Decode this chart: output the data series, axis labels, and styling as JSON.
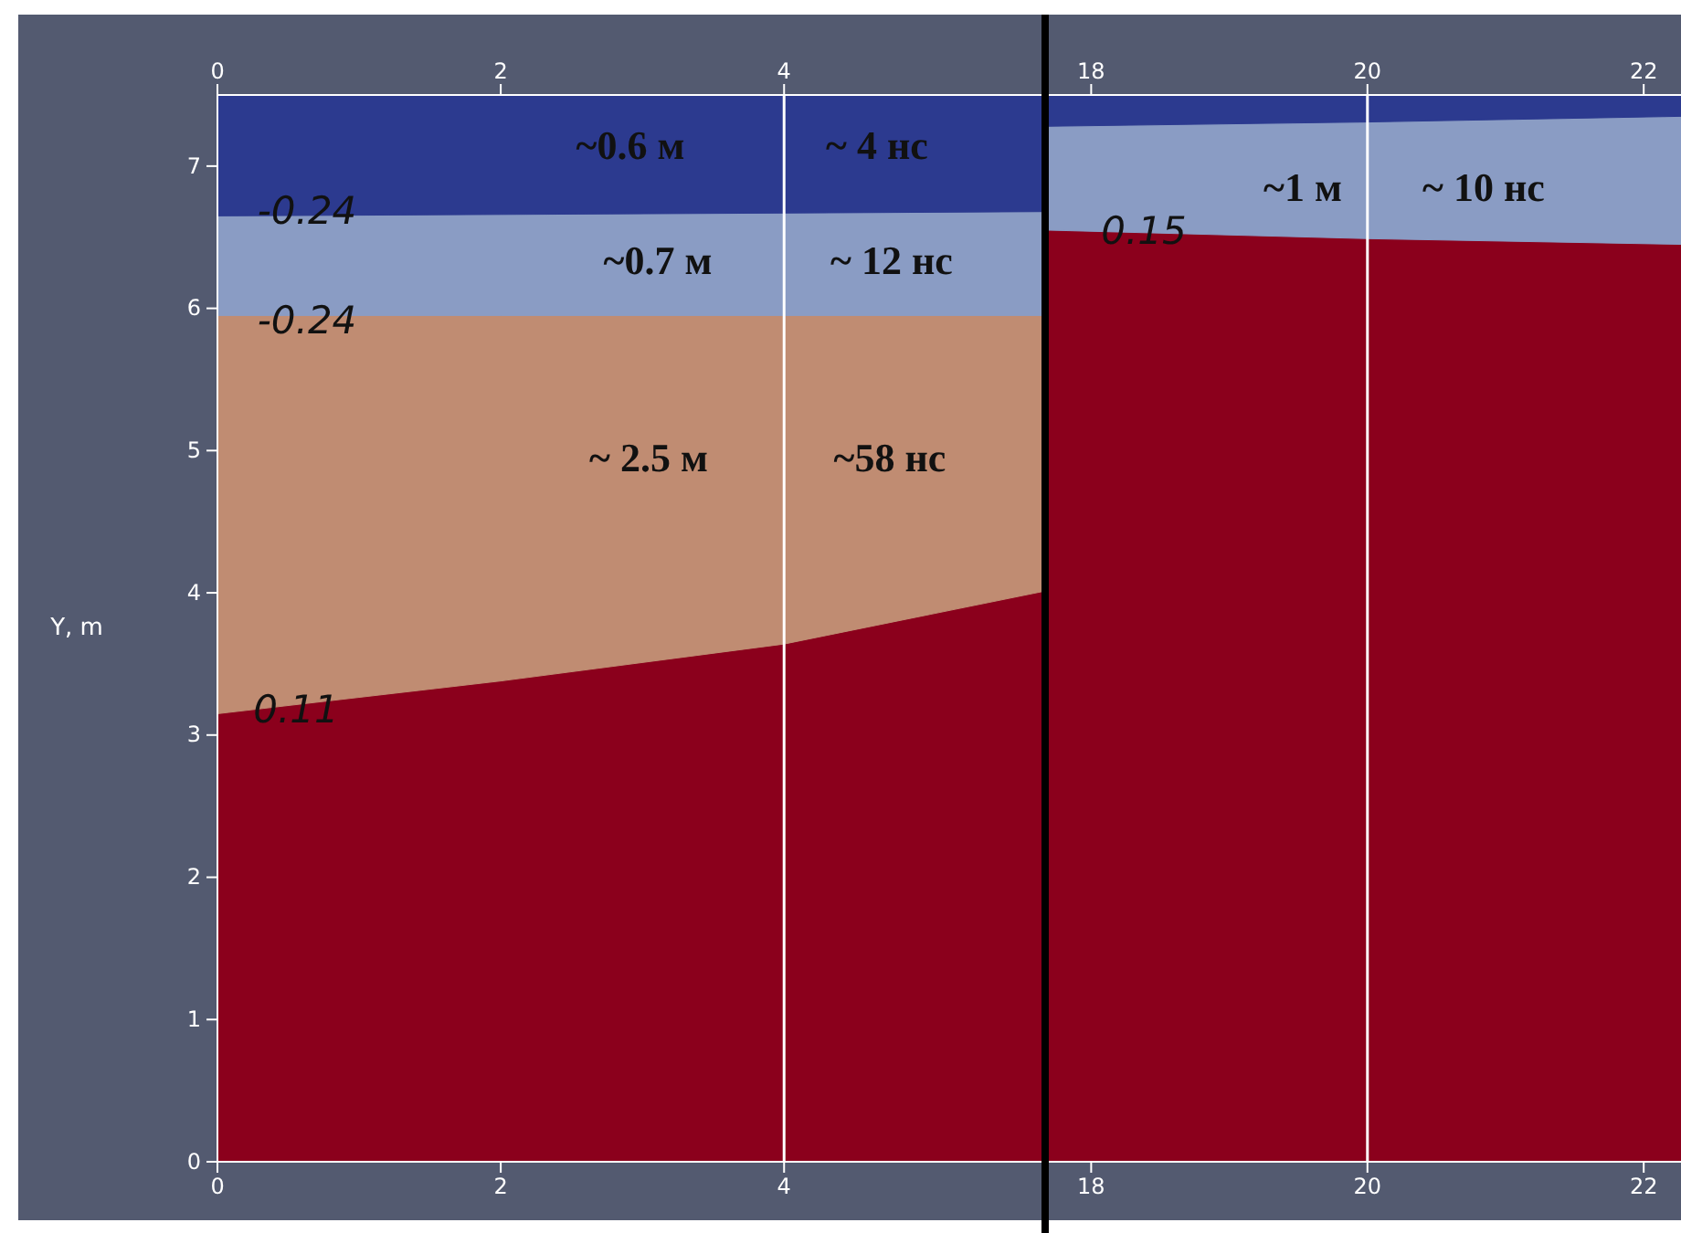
{
  "chart_data": [
    {
      "type": "area",
      "stacked": true,
      "ylabel": "Y, m",
      "x": [
        0,
        2,
        4,
        5.83
      ],
      "series": [
        {
          "color": "#8b001c",
          "values": [
            3.15,
            3.38,
            3.64,
            4.01
          ]
        },
        {
          "color": "#c08c72",
          "values": [
            2.8,
            2.57,
            2.31,
            1.94
          ]
        },
        {
          "color": "#8a9cc4",
          "values": [
            0.7,
            0.71,
            0.72,
            0.73
          ]
        },
        {
          "color": "#2c3a8f",
          "values": [
            0.85,
            0.84,
            0.83,
            0.82
          ]
        }
      ],
      "xlim": [
        0,
        5.83
      ],
      "xticks": [
        0,
        2,
        4
      ],
      "x2lim": [
        0,
        5.83
      ],
      "x2ticks": [
        0,
        2,
        4
      ],
      "ylim": [
        0,
        7.5
      ],
      "yticks": [
        0,
        1,
        2,
        3,
        4,
        5,
        6,
        7
      ],
      "ref_lines": [
        {
          "axis": "x",
          "value": 4,
          "color": "#ffffff"
        }
      ],
      "annotations": [
        "~0.6 м",
        "~ 4 нс",
        "~0.7 м",
        "~ 12 нс",
        "~ 2.5 м",
        "~58 нс",
        "-0.24",
        "-0.24",
        "0.11"
      ]
    },
    {
      "type": "area",
      "stacked": true,
      "x": [
        17.68,
        20,
        22.27
      ],
      "series": [
        {
          "color": "#8b001c",
          "values": [
            6.55,
            6.49,
            6.45
          ]
        },
        {
          "color": "#8a9cc4",
          "values": [
            0.73,
            0.82,
            0.9
          ]
        },
        {
          "color": "#2c3a8f",
          "values": [
            0.22,
            0.19,
            0.15
          ]
        }
      ],
      "xlim": [
        17.68,
        22.27
      ],
      "xticks": [
        18,
        20,
        22
      ],
      "x2lim": [
        17.68,
        22.27
      ],
      "x2ticks": [
        18,
        20,
        22
      ],
      "ylim": [
        0,
        7.5
      ],
      "tick_labels": "x",
      "ref_lines": [
        {
          "axis": "x",
          "value": 20,
          "color": "#ffffff"
        }
      ],
      "annotations": [
        "~1 м",
        "~ 10 нс",
        "0.15"
      ]
    }
  ]
}
